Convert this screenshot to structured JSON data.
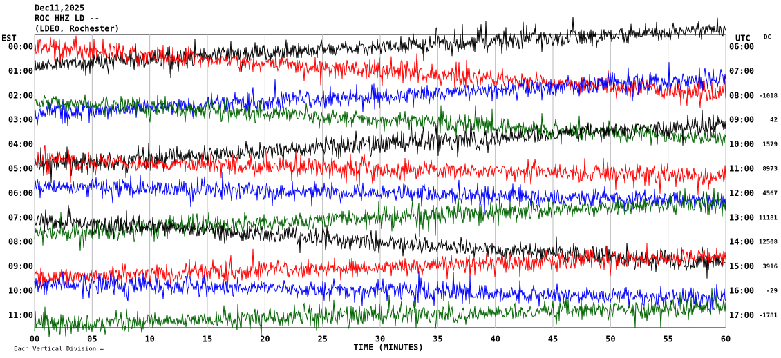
{
  "chart_data": {
    "type": "helicorder",
    "title_lines": [
      "Dec11,2025",
      "ROC HHZ LD --",
      "(LDEO, Rochester)"
    ],
    "left_axis_label": "EST",
    "right_axis_label": "UTC",
    "dc_label": "DC",
    "xlabel": "TIME (MINUTES)",
    "footer": "Each Vertical Division =",
    "xlim": [
      0,
      60
    ],
    "xticks": [
      {
        "value": 0,
        "label": "00"
      },
      {
        "value": 5,
        "label": "05"
      },
      10,
      15,
      20,
      25,
      30,
      35,
      40,
      45,
      50,
      55,
      60
    ],
    "colors": [
      "#000000",
      "#ff0000",
      "#0000ff",
      "#006400"
    ],
    "rows": [
      {
        "est": "00:00",
        "utc": "06:00",
        "dc": null
      },
      {
        "est": "01:00",
        "utc": "07:00",
        "dc": null
      },
      {
        "est": "02:00",
        "utc": "08:00",
        "dc": "-1018"
      },
      {
        "est": "03:00",
        "utc": "09:00",
        "dc": "42"
      },
      {
        "est": "04:00",
        "utc": "10:00",
        "dc": "1579"
      },
      {
        "est": "05:00",
        "utc": "11:00",
        "dc": "8973"
      },
      {
        "est": "06:00",
        "utc": "12:00",
        "dc": "4567"
      },
      {
        "est": "07:00",
        "utc": "13:00",
        "dc": "11181"
      },
      {
        "est": "08:00",
        "utc": "14:00",
        "dc": "12508"
      },
      {
        "est": "09:00",
        "utc": "15:00",
        "dc": "3916"
      },
      {
        "est": "10:00",
        "utc": "16:00",
        "dc": "-29"
      },
      {
        "est": "11:00",
        "utc": "17:00",
        "dc": "-1781"
      }
    ]
  }
}
